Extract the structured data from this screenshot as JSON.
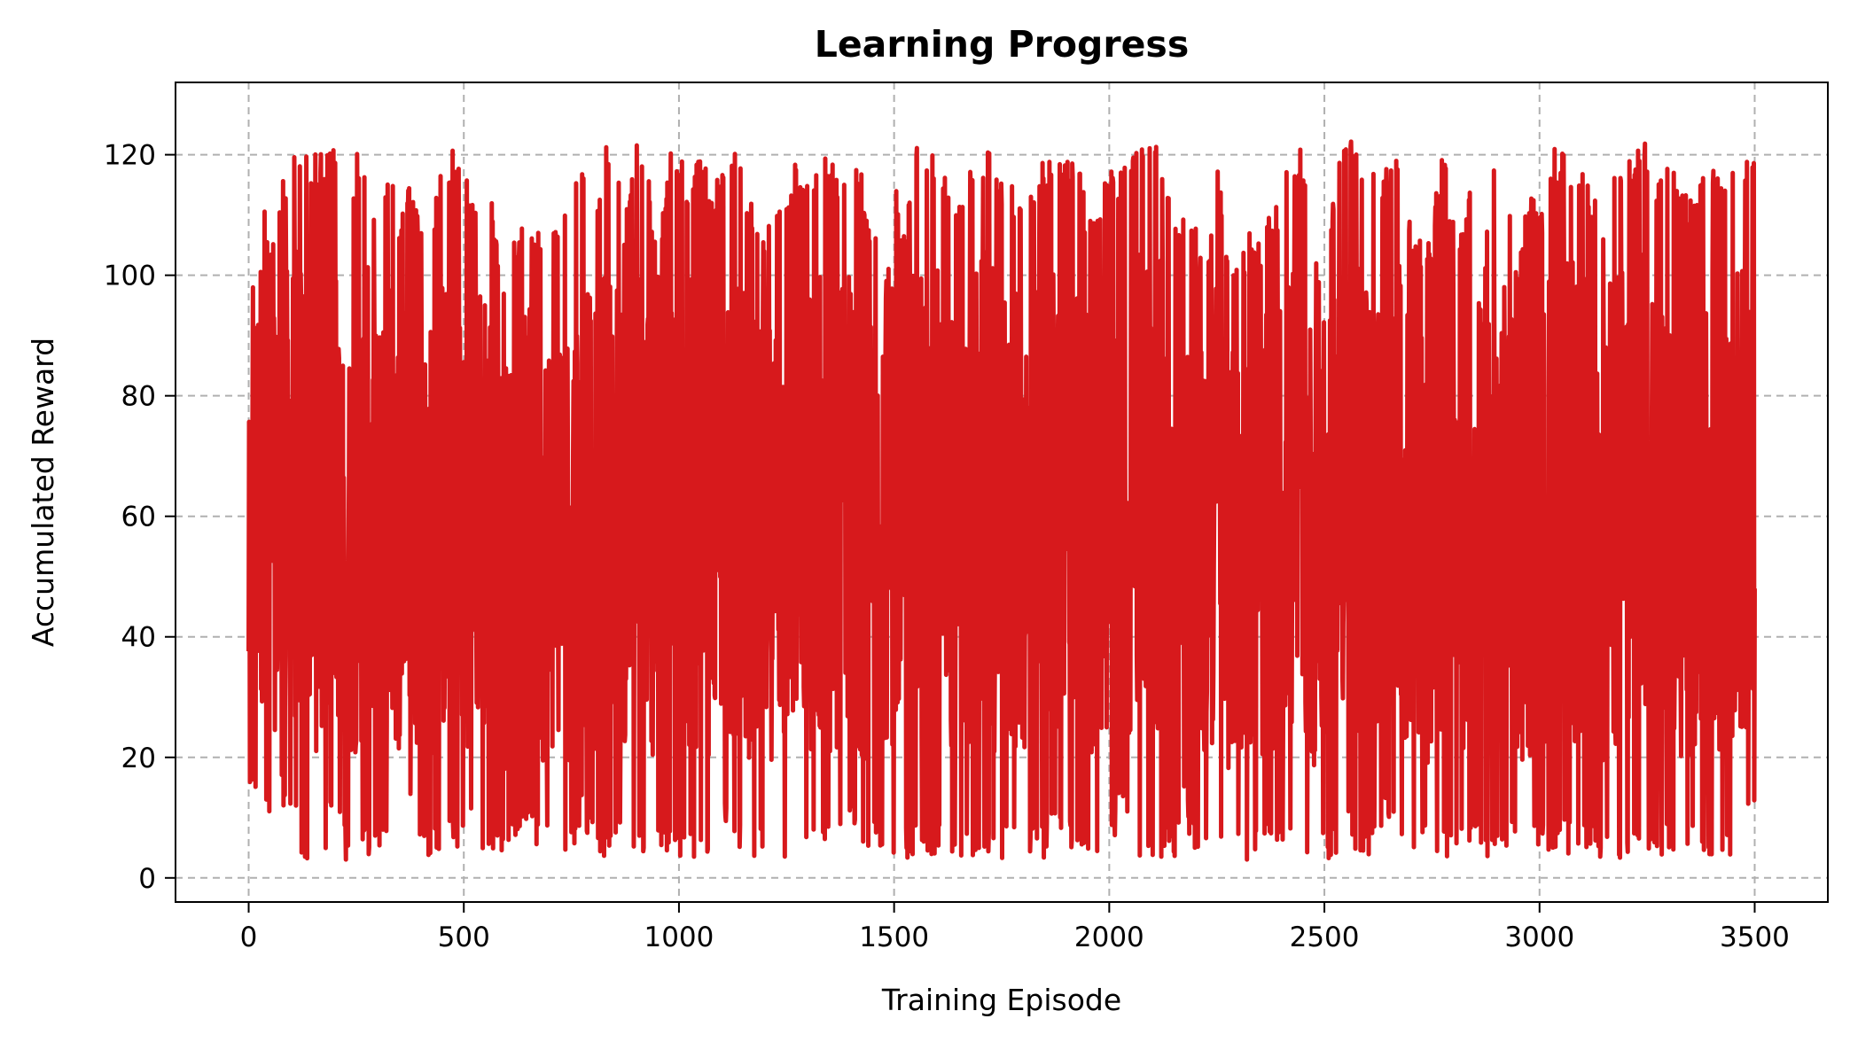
{
  "chart_data": {
    "type": "line",
    "title": "Learning Progress",
    "xlabel": "Training Episode",
    "ylabel": "Accumulated Reward",
    "xlim": [
      -170,
      3670
    ],
    "ylim": [
      -4,
      132
    ],
    "x_ticks": [
      0,
      500,
      1000,
      1500,
      2000,
      2500,
      3000,
      3500
    ],
    "y_ticks": [
      0,
      20,
      40,
      60,
      80,
      100,
      120
    ],
    "grid": true,
    "grid_style": "dashed",
    "legend": "none",
    "series": [
      {
        "color": "#d7191c",
        "episodes": 3500,
        "x": [
          0,
          25,
          50,
          75,
          100,
          125,
          150,
          175,
          200,
          225,
          250,
          275,
          300,
          325,
          350,
          375,
          400,
          425,
          450,
          475,
          500,
          525,
          550,
          575,
          600,
          625,
          650,
          675,
          700,
          725,
          750,
          775,
          800,
          825,
          850,
          875,
          900,
          925,
          950,
          975,
          1000,
          1025,
          1050,
          1075,
          1100,
          1125,
          1150,
          1175,
          1200,
          1225,
          1250,
          1275,
          1300,
          1325,
          1350,
          1375,
          1400,
          1425,
          1450,
          1475,
          1500,
          1525,
          1550,
          1575,
          1600,
          1625,
          1650,
          1675,
          1700,
          1725,
          1750,
          1775,
          1800,
          1825,
          1850,
          1875,
          1900,
          1925,
          1950,
          1975,
          2000,
          2025,
          2050,
          2075,
          2100,
          2125,
          2150,
          2175,
          2200,
          2225,
          2250,
          2275,
          2300,
          2325,
          2350,
          2375,
          2400,
          2425,
          2450,
          2475,
          2500,
          2525,
          2550,
          2575,
          2600,
          2625,
          2650,
          2675,
          2700,
          2725,
          2750,
          2775,
          2800,
          2825,
          2850,
          2875,
          2900,
          2925,
          2950,
          2975,
          3000,
          3025,
          3050,
          3075,
          3100,
          3125,
          3150,
          3175,
          3200,
          3225,
          3250,
          3275,
          3300,
          3325,
          3350,
          3375,
          3400,
          3425,
          3450,
          3475,
          3500
        ],
        "y_max": [
          86,
          123,
          104,
          115,
          122,
          122,
          121,
          121,
          121,
          96,
          121,
          120,
          106,
          120,
          109,
          117,
          107,
          110,
          118,
          121,
          121,
          110,
          125,
          106,
          101,
          108,
          110,
          108,
          108,
          110,
          110,
          122,
          110,
          121,
          122,
          110,
          122,
          123,
          101,
          121,
          121,
          116,
          123,
          112,
          121,
          121,
          117,
          111,
          108,
          115,
          115,
          122,
          115,
          121,
          121,
          117,
          119,
          117,
          106,
          121,
          121,
          106,
          122,
          121,
          122,
          115,
          113,
          117,
          122,
          122,
          116,
          115,
          112,
          116,
          120,
          123,
          121,
          121,
          109,
          110,
          121,
          118,
          120,
          122,
          126,
          121,
          111,
          109,
          111,
          97,
          121,
          102,
          104,
          107,
          106,
          112,
          114,
          121,
          121,
          106,
          95,
          121,
          124,
          122,
          121,
          115,
          119,
          119,
          108,
          107,
          109,
          122,
          109,
          108,
          124,
          106,
          121,
          114,
          102,
          115,
          110,
          121,
          121,
          120,
          121,
          114,
          109,
          122,
          120,
          121,
          123,
          115,
          123,
          114,
          114,
          118,
          120,
          115,
          121,
          121,
          122
        ],
        "y_min": [
          10,
          15,
          7,
          12,
          9,
          3,
          3,
          3,
          12,
          3,
          3,
          3,
          3,
          5,
          5,
          10,
          5,
          3,
          5,
          3,
          3,
          8,
          3,
          3,
          3,
          8,
          10,
          3,
          5,
          3,
          3,
          10,
          3,
          3,
          3,
          5,
          3,
          3,
          3,
          3,
          3,
          3,
          3,
          3,
          8,
          3,
          3,
          3,
          3,
          3,
          3,
          3,
          3,
          3,
          3,
          3,
          8,
          3,
          3,
          5,
          3,
          3,
          3,
          3,
          3,
          3,
          3,
          3,
          3,
          3,
          3,
          3,
          3,
          3,
          3,
          10,
          3,
          5,
          3,
          3,
          3,
          10,
          3,
          3,
          3,
          3,
          3,
          10,
          3,
          5,
          3,
          3,
          3,
          3,
          3,
          3,
          5,
          3,
          3,
          3,
          3,
          3,
          10,
          3,
          3,
          3,
          10,
          3,
          3,
          3,
          3,
          3,
          3,
          5,
          3,
          3,
          3,
          5,
          3,
          3,
          3,
          3,
          5,
          3,
          3,
          3,
          3,
          3,
          3,
          3,
          3,
          3,
          3,
          3,
          3,
          3,
          3,
          3,
          3,
          3,
          12
        ]
      }
    ]
  }
}
